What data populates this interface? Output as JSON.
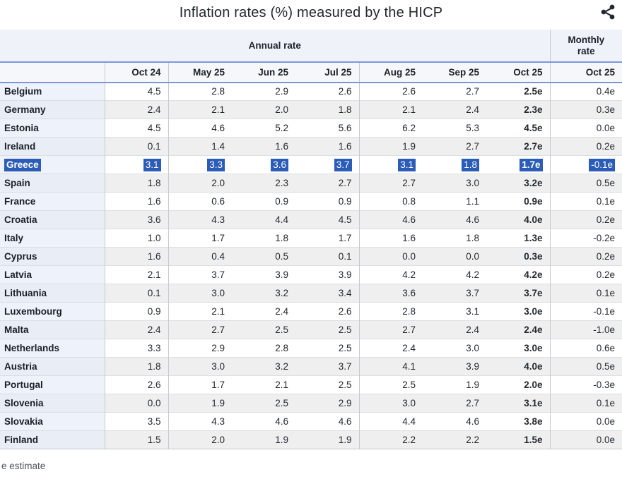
{
  "title": "Inflation rates (%) measured by the HICP",
  "header": {
    "annual_label": "Annual rate",
    "monthly_label": "Monthly rate"
  },
  "table": {
    "columns": [
      "Oct 24",
      "May 25",
      "Jun 25",
      "Jul 25",
      "Aug 25",
      "Sep 25",
      "Oct 25"
    ],
    "monthly_column": "Oct 25"
  },
  "footnote": "e estimate",
  "icons": {
    "share": "share-icon"
  },
  "colors": {
    "selection_highlight": "#2b5cb8",
    "header_band_bg": "#eff2f9",
    "month_row_bg": "#f6f7fa",
    "blue_rule": "#7e96d8",
    "stripe_gray": "#efefef",
    "country_col_bg": "#eef2fa",
    "icon_dark": "#242a33"
  },
  "chart_data": {
    "type": "table",
    "title": "Inflation rates (%) measured by the HICP",
    "column_groups": [
      {
        "label": "Annual rate",
        "span": 7
      },
      {
        "label": "Monthly rate",
        "span": 1
      }
    ],
    "columns": [
      "Oct 24",
      "May 25",
      "Jun 25",
      "Jul 25",
      "Aug 25",
      "Sep 25",
      "Oct 25",
      "Oct 25 (monthly)"
    ],
    "rows": [
      {
        "country": "Belgium",
        "values": [
          "4.5",
          "2.8",
          "2.9",
          "2.6",
          "2.6",
          "2.7",
          "2.5e",
          "0.4e"
        ],
        "highlighted": false
      },
      {
        "country": "Germany",
        "values": [
          "2.4",
          "2.1",
          "2.0",
          "1.8",
          "2.1",
          "2.4",
          "2.3e",
          "0.3e"
        ],
        "highlighted": false
      },
      {
        "country": "Estonia",
        "values": [
          "4.5",
          "4.6",
          "5.2",
          "5.6",
          "6.2",
          "5.3",
          "4.5e",
          "0.0e"
        ],
        "highlighted": false
      },
      {
        "country": "Ireland",
        "values": [
          "0.1",
          "1.4",
          "1.6",
          "1.6",
          "1.9",
          "2.7",
          "2.7e",
          "0.2e"
        ],
        "highlighted": false
      },
      {
        "country": "Greece",
        "values": [
          "3.1",
          "3.3",
          "3.6",
          "3.7",
          "3.1",
          "1.8",
          "1.7e",
          "-0.1e"
        ],
        "highlighted": true
      },
      {
        "country": "Spain",
        "values": [
          "1.8",
          "2.0",
          "2.3",
          "2.7",
          "2.7",
          "3.0",
          "3.2e",
          "0.5e"
        ],
        "highlighted": false
      },
      {
        "country": "France",
        "values": [
          "1.6",
          "0.6",
          "0.9",
          "0.9",
          "0.8",
          "1.1",
          "0.9e",
          "0.1e"
        ],
        "highlighted": false
      },
      {
        "country": "Croatia",
        "values": [
          "3.6",
          "4.3",
          "4.4",
          "4.5",
          "4.6",
          "4.6",
          "4.0e",
          "0.2e"
        ],
        "highlighted": false
      },
      {
        "country": "Italy",
        "values": [
          "1.0",
          "1.7",
          "1.8",
          "1.7",
          "1.6",
          "1.8",
          "1.3e",
          "-0.2e"
        ],
        "highlighted": false
      },
      {
        "country": "Cyprus",
        "values": [
          "1.6",
          "0.4",
          "0.5",
          "0.1",
          "0.0",
          "0.0",
          "0.3e",
          "0.2e"
        ],
        "highlighted": false
      },
      {
        "country": "Latvia",
        "values": [
          "2.1",
          "3.7",
          "3.9",
          "3.9",
          "4.2",
          "4.2",
          "4.2e",
          "0.2e"
        ],
        "highlighted": false
      },
      {
        "country": "Lithuania",
        "values": [
          "0.1",
          "3.0",
          "3.2",
          "3.4",
          "3.6",
          "3.7",
          "3.7e",
          "0.1e"
        ],
        "highlighted": false
      },
      {
        "country": "Luxembourg",
        "values": [
          "0.9",
          "2.1",
          "2.4",
          "2.6",
          "2.8",
          "3.1",
          "3.0e",
          "-0.1e"
        ],
        "highlighted": false
      },
      {
        "country": "Malta",
        "values": [
          "2.4",
          "2.7",
          "2.5",
          "2.5",
          "2.7",
          "2.4",
          "2.4e",
          "-1.0e"
        ],
        "highlighted": false
      },
      {
        "country": "Netherlands",
        "values": [
          "3.3",
          "2.9",
          "2.8",
          "2.5",
          "2.4",
          "3.0",
          "3.0e",
          "0.6e"
        ],
        "highlighted": false
      },
      {
        "country": "Austria",
        "values": [
          "1.8",
          "3.0",
          "3.2",
          "3.7",
          "4.1",
          "3.9",
          "4.0e",
          "0.5e"
        ],
        "highlighted": false
      },
      {
        "country": "Portugal",
        "values": [
          "2.6",
          "1.7",
          "2.1",
          "2.5",
          "2.5",
          "1.9",
          "2.0e",
          "-0.3e"
        ],
        "highlighted": false
      },
      {
        "country": "Slovenia",
        "values": [
          "0.0",
          "1.9",
          "2.5",
          "2.9",
          "3.0",
          "2.7",
          "3.1e",
          "0.1e"
        ],
        "highlighted": false
      },
      {
        "country": "Slovakia",
        "values": [
          "3.5",
          "4.3",
          "4.6",
          "4.6",
          "4.4",
          "4.6",
          "3.8e",
          "0.0e"
        ],
        "highlighted": false
      },
      {
        "country": "Finland",
        "values": [
          "1.5",
          "2.0",
          "1.9",
          "1.9",
          "2.2",
          "2.2",
          "1.5e",
          "0.0e"
        ],
        "highlighted": false
      }
    ],
    "footnote": "e estimate",
    "notes": "Greece row shown with blue text-selection highlight; Oct 25 annual column bold; e = estimate"
  }
}
